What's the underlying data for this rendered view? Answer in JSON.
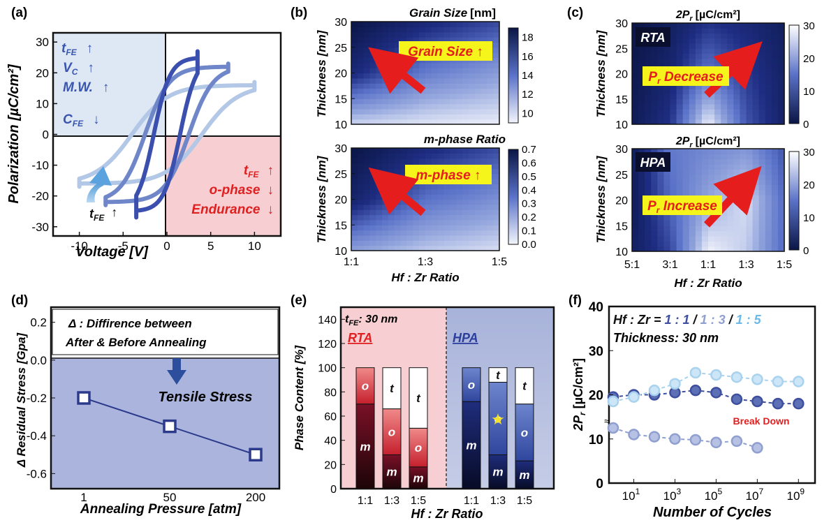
{
  "panels": {
    "a": {
      "label": "(a)",
      "xlabel": "Voltage [V]",
      "ylabel": "Polarization [µC/cm²]",
      "xticks": [
        "-10",
        "-5",
        "0",
        "5",
        "10"
      ],
      "yticks": [
        "30",
        "20",
        "10",
        "0",
        "-10",
        "-20",
        "-30"
      ],
      "q_blue": {
        "t": "t",
        "t_sub": "FE",
        "vc": "V",
        "vc_sub": "C",
        "mw": "M.W.",
        "c": "C",
        "c_sub": "FE",
        "up": "↑",
        "down": "↓"
      },
      "q_red": {
        "t": "t",
        "t_sub": "FE",
        "ophase": "o-phase",
        "endurance": "Endurance",
        "up": "↑",
        "down": "↓"
      },
      "arrow_label": {
        "t": "t",
        "t_sub": "FE",
        "up": "↑"
      },
      "colors": {
        "blue_q": "#dde8f4",
        "red_q": "#f7cfd3",
        "text_blue": "#3a55b0",
        "text_red": "#e02020"
      }
    },
    "b": {
      "label": "(b)",
      "top": {
        "title": "Grain Size",
        "unit": "[nm]",
        "cbar_ticks": [
          "18",
          "16",
          "14",
          "12",
          "10"
        ],
        "callout": "Grain Size ↑"
      },
      "bottom": {
        "title": "m-phase Ratio",
        "cbar_ticks": [
          "0.7",
          "0.6",
          "0.5",
          "0.4",
          "0.3",
          "0.2",
          "0.1",
          "0.0"
        ],
        "callout": "m-phase ↑"
      },
      "ylabel": "Thickness [nm]",
      "yticks": [
        "30",
        "25",
        "20",
        "15",
        "10"
      ],
      "xticks": [
        "1:1",
        "1:3",
        "1:5"
      ],
      "xlabel": "Hf : Zr Ratio"
    },
    "c": {
      "label": "(c)",
      "top": {
        "title": "2P",
        "title_sub": "r",
        "unit": "[µC/cm²]",
        "tag": "RTA",
        "cbar_ticks": [
          "30",
          "20",
          "10",
          "0"
        ],
        "callout": "P",
        "callout_sub": "r",
        "callout_rest": " Decrease"
      },
      "bottom": {
        "title": "2P",
        "title_sub": "r",
        "unit": "[µC/cm²]",
        "tag": "HPA",
        "cbar_ticks": [
          "30",
          "20",
          "10",
          "0"
        ],
        "callout": "P",
        "callout_sub": "r",
        "callout_rest": " Increase"
      },
      "ylabel": "Thickness [nm]",
      "yticks": [
        "30",
        "25",
        "20",
        "15",
        "10"
      ],
      "xticks": [
        "5:1",
        "3:1",
        "1:1",
        "1:3",
        "1:5"
      ],
      "xlabel": "Hf : Zr Ratio"
    },
    "d": {
      "label": "(d)",
      "ylabel": "Δ Residual Stress [Gpa]",
      "xlabel": "Annealing Pressure [atm]",
      "note_line1": "Δ : Diffirence between",
      "note_line2": "After & Before Annealing",
      "stress_label": "Tensile Stress",
      "yticks": [
        "0.2",
        "0.0",
        "-0.2",
        "-0.4",
        "-0.6"
      ]
    },
    "e": {
      "label": "(e)",
      "ylabel": "Phase Content [%]",
      "xlabel": "Hf : Zr Ratio",
      "thickness": "t",
      "thickness_sub": "FE",
      "thickness_rest": ": 30 nm",
      "rta": "RTA",
      "hpa": "HPA",
      "yticks": [
        "140",
        "120",
        "100",
        "80",
        "60",
        "40",
        "20",
        "0"
      ],
      "phase_letters": {
        "m": "m",
        "o": "o",
        "t": "t"
      },
      "star": "★"
    },
    "f": {
      "label": "(f)",
      "ylabel": "2P",
      "ylabel_sub": "r",
      "ylabel_unit": " [µC/cm²]",
      "xlabel": "Number of Cycles",
      "legend_prefix": "Hf : Zr = ",
      "legend_1": "1 : 1",
      "legend_2": "1 : 3",
      "legend_3": "1 : 5",
      "sep": " / ",
      "thickness": "Thickness: 30 nm",
      "breakdown": "Break Down",
      "yticks": [
        "40",
        "30",
        "20",
        "10",
        "0"
      ],
      "xticks": [
        "10",
        "10",
        "10",
        "10",
        "10"
      ],
      "xtick_exp": [
        "1",
        "3",
        "5",
        "7",
        "9"
      ],
      "axis_break": "≈"
    }
  },
  "chart_data": [
    {
      "panel": "a",
      "type": "line",
      "xlabel": "Voltage [V]",
      "ylabel": "Polarization [µC/cm²]",
      "xlim": [
        -13,
        13
      ],
      "ylim": [
        -33,
        33
      ],
      "series": [
        {
          "color": "#b3c7e6",
          "vc": 4.0,
          "ps": 16,
          "vmax": 10,
          "ptop": 17
        },
        {
          "color": "#6f86c9",
          "vc": 2.5,
          "ps": 22,
          "vmax": 7,
          "ptop": 23
        },
        {
          "color": "#3b4fae",
          "vc": 1.5,
          "ps": 25,
          "vmax": 3.5,
          "ptop": 27
        }
      ]
    },
    {
      "panel": "b-top",
      "type": "heatmap",
      "title": "Grain Size [nm]",
      "xlim": [
        1,
        5
      ],
      "ylim": [
        10,
        30
      ],
      "zlim": [
        9,
        19
      ],
      "x": [
        1,
        3,
        5
      ],
      "y": [
        10,
        20,
        30
      ],
      "z": [
        [
          10,
          9.5,
          9.2
        ],
        [
          17,
          13.5,
          12
        ],
        [
          19,
          17,
          15.5
        ]
      ]
    },
    {
      "panel": "b-bottom",
      "type": "heatmap",
      "title": "m-phase Ratio",
      "xlim": [
        1,
        5
      ],
      "ylim": [
        10,
        30
      ],
      "zlim": [
        0,
        0.7
      ],
      "x": [
        1,
        3,
        5
      ],
      "y": [
        10,
        20,
        30
      ],
      "z": [
        [
          0.2,
          0.1,
          0.05
        ],
        [
          0.6,
          0.35,
          0.25
        ],
        [
          0.7,
          0.55,
          0.45
        ]
      ]
    },
    {
      "panel": "c-top",
      "type": "heatmap",
      "title": "2Pr [µC/cm²]",
      "x": [
        "5:1",
        "3:1",
        "1:1",
        "1:3",
        "1:5"
      ],
      "y": [
        10,
        20,
        30
      ],
      "zlim": [
        0,
        30
      ],
      "z": [
        [
          2,
          8,
          30,
          12,
          4
        ],
        [
          1,
          5,
          16,
          9,
          4
        ],
        [
          0,
          3,
          8,
          6,
          3
        ]
      ]
    },
    {
      "panel": "c-bottom",
      "type": "heatmap",
      "title": "2Pr [µC/cm²]",
      "x": [
        "5:1",
        "3:1",
        "1:1",
        "1:3",
        "1:5"
      ],
      "y": [
        10,
        20,
        30
      ],
      "zlim": [
        0,
        30
      ],
      "z": [
        [
          3,
          10,
          30,
          26,
          14
        ],
        [
          2,
          14,
          22,
          28,
          14
        ],
        [
          2,
          16,
          18,
          20,
          12
        ]
      ]
    },
    {
      "panel": "d",
      "type": "line",
      "categories": [
        "1",
        "50",
        "200"
      ],
      "values": [
        -0.2,
        -0.35,
        -0.5
      ],
      "xlabel": "Annealing Pressure [atm]",
      "ylabel": "Δ Residual Stress [Gpa]",
      "ylim": [
        -0.68,
        0.28
      ]
    },
    {
      "panel": "e",
      "type": "bar",
      "categories": [
        "1:1",
        "1:3",
        "1:5",
        "1:1",
        "1:3",
        "1:5"
      ],
      "groups": [
        "RTA",
        "RTA",
        "RTA",
        "HPA",
        "HPA",
        "HPA"
      ],
      "ylim": [
        0,
        150
      ],
      "series": [
        {
          "name": "m",
          "values": [
            70,
            28,
            18,
            72,
            28,
            23
          ]
        },
        {
          "name": "o",
          "values": [
            30,
            38,
            32,
            28,
            60,
            47
          ]
        },
        {
          "name": "t",
          "values": [
            0,
            34,
            50,
            0,
            12,
            30
          ]
        }
      ]
    },
    {
      "panel": "f",
      "type": "line",
      "xlabel": "Number of Cycles",
      "ylabel": "2Pr [µC/cm²]",
      "xlim": [
        0,
        9.6
      ],
      "ylim": [
        0,
        40
      ],
      "xscale": "log",
      "series": [
        {
          "name": "1 : 1",
          "color": "#3d4f9e",
          "x": [
            0,
            1,
            2,
            3,
            4,
            5,
            6,
            7,
            8,
            9
          ],
          "values": [
            19.5,
            20,
            20,
            20.5,
            21,
            20.5,
            19,
            18.5,
            18,
            18
          ]
        },
        {
          "name": "1 : 3",
          "color": "#8e9fd0",
          "x": [
            0,
            1,
            2,
            3,
            4,
            5,
            6,
            7
          ],
          "values": [
            12.5,
            11,
            10.5,
            10,
            9.8,
            9.2,
            9.5,
            8
          ]
        },
        {
          "name": "1 : 5",
          "color": "#a8d2ee",
          "x": [
            0,
            1,
            2,
            3,
            4,
            5,
            6,
            7,
            8,
            9
          ],
          "values": [
            18.5,
            19.5,
            21,
            22.5,
            25,
            24.5,
            24,
            23.5,
            23,
            23
          ]
        }
      ]
    }
  ]
}
